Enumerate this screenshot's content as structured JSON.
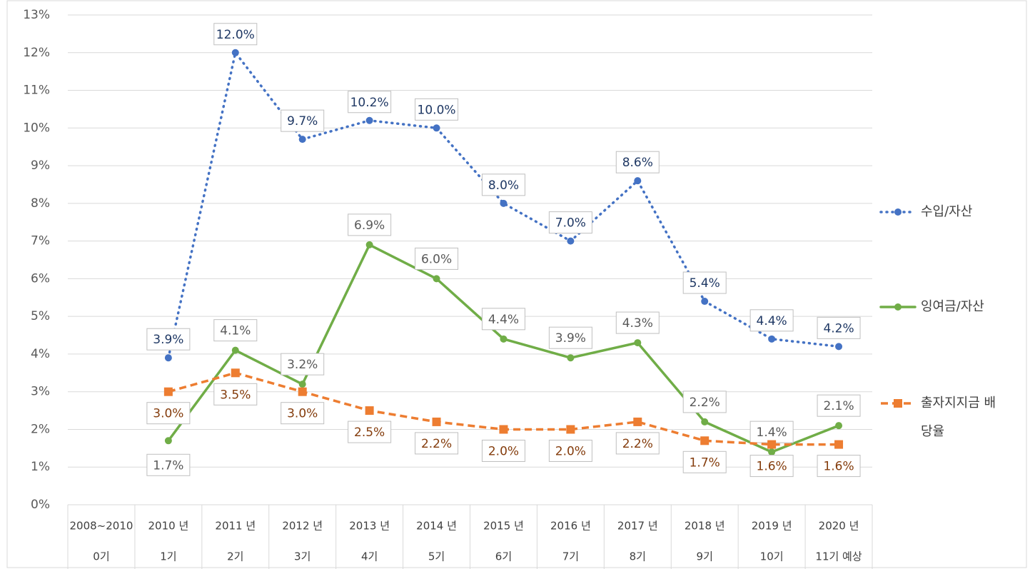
{
  "chart_data": {
    "type": "line",
    "categories": [
      [
        "2008~2010",
        "0기"
      ],
      [
        "2010 년",
        "1기"
      ],
      [
        "2011 년",
        "2기"
      ],
      [
        "2012 년",
        "3기"
      ],
      [
        "2013 년",
        "4기"
      ],
      [
        "2014 년",
        "5기"
      ],
      [
        "2015 년",
        "6기"
      ],
      [
        "2016 년",
        "7기"
      ],
      [
        "2017 년",
        "8기"
      ],
      [
        "2018 년",
        "9기"
      ],
      [
        "2019 년",
        "10기"
      ],
      [
        "2020 년",
        "11기 예상"
      ]
    ],
    "series": [
      {
        "name": "수입/자산",
        "color": "#4472c4",
        "values": [
          null,
          3.9,
          12.0,
          9.7,
          10.2,
          10.0,
          8.0,
          7.0,
          8.6,
          5.4,
          4.4,
          4.2
        ],
        "value_labels": [
          null,
          "3.9%",
          "12.0%",
          "9.7%",
          "10.2%",
          "10.0%",
          "8.0%",
          "7.0%",
          "8.6%",
          "5.4%",
          "4.4%",
          "4.2%"
        ]
      },
      {
        "name": "잉여금/자산",
        "color": "#70ad47",
        "values": [
          null,
          1.7,
          4.1,
          3.2,
          6.9,
          6.0,
          4.4,
          3.9,
          4.3,
          2.2,
          1.4,
          2.1
        ],
        "value_labels": [
          null,
          "1.7%",
          "4.1%",
          "3.2%",
          "6.9%",
          "6.0%",
          "4.4%",
          "3.9%",
          "4.3%",
          "2.2%",
          "1.4%",
          "2.1%"
        ]
      },
      {
        "name": "출자지지금 배당율",
        "color": "#ed7d31",
        "values": [
          null,
          3.0,
          3.5,
          3.0,
          2.5,
          2.2,
          2.0,
          2.0,
          2.2,
          1.7,
          1.6,
          1.6
        ],
        "value_labels": [
          null,
          "3.0%",
          "3.5%",
          "3.0%",
          "2.5%",
          "2.2%",
          "2.0%",
          "2.0%",
          "2.2%",
          "1.7%",
          "1.6%",
          "1.6%"
        ]
      }
    ],
    "ylim": [
      0,
      13
    ],
    "yticks": [
      {
        "value": 0,
        "label": "0%"
      },
      {
        "value": 1,
        "label": "1%"
      },
      {
        "value": 2,
        "label": "2%"
      },
      {
        "value": 3,
        "label": "3%"
      },
      {
        "value": 4,
        "label": "4%"
      },
      {
        "value": 5,
        "label": "5%"
      },
      {
        "value": 6,
        "label": "6%"
      },
      {
        "value": 7,
        "label": "7%"
      },
      {
        "value": 8,
        "label": "8%"
      },
      {
        "value": 9,
        "label": "9%"
      },
      {
        "value": 10,
        "label": "10%"
      },
      {
        "value": 11,
        "label": "11%"
      },
      {
        "value": 12,
        "label": "12%"
      },
      {
        "value": 13,
        "label": "13%"
      }
    ],
    "grid": true,
    "legend": "right"
  }
}
